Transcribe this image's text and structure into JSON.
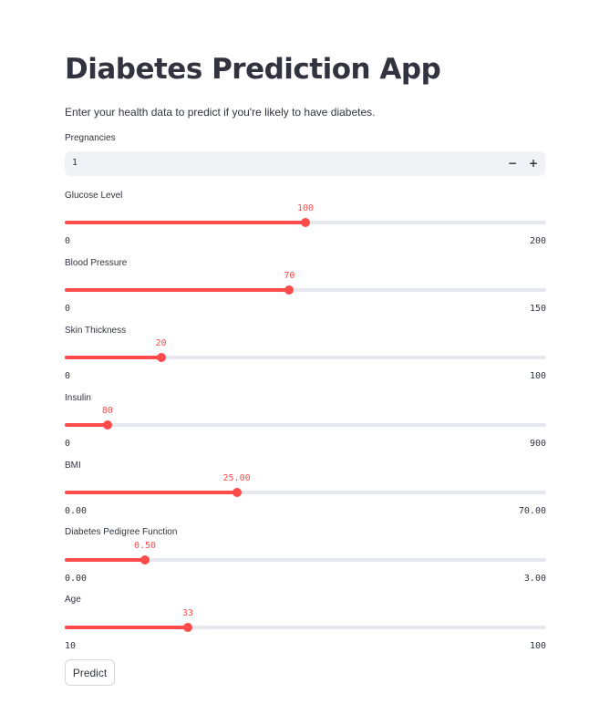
{
  "app": {
    "title": "Diabetes Prediction App",
    "subtitle": "Enter your health data to predict if you're likely to have diabetes."
  },
  "pregnancies": {
    "label": "Pregnancies",
    "value": "1",
    "minus": "−",
    "plus": "+"
  },
  "sliders": [
    {
      "label": "Glucose Level",
      "value": 100,
      "value_text": "100",
      "min": 0,
      "max": 200,
      "min_text": "0",
      "max_text": "200"
    },
    {
      "label": "Blood Pressure",
      "value": 70,
      "value_text": "70",
      "min": 0,
      "max": 150,
      "min_text": "0",
      "max_text": "150"
    },
    {
      "label": "Skin Thickness",
      "value": 20,
      "value_text": "20",
      "min": 0,
      "max": 100,
      "min_text": "0",
      "max_text": "100"
    },
    {
      "label": "Insulin",
      "value": 80,
      "value_text": "80",
      "min": 0,
      "max": 900,
      "min_text": "0",
      "max_text": "900"
    },
    {
      "label": "BMI",
      "value": 25.0,
      "value_text": "25.00",
      "min": 0,
      "max": 70,
      "min_text": "0.00",
      "max_text": "70.00"
    },
    {
      "label": "Diabetes Pedigree Function",
      "value": 0.5,
      "value_text": "0.50",
      "min": 0,
      "max": 3,
      "min_text": "0.00",
      "max_text": "3.00"
    },
    {
      "label": "Age",
      "value": 33,
      "value_text": "33",
      "min": 10,
      "max": 100,
      "min_text": "10",
      "max_text": "100"
    }
  ],
  "predict_label": "Predict",
  "colors": {
    "accent": "#ff4b4b",
    "track": "#e6e8ee",
    "text": "#31333f",
    "input_bg": "#f0f2f6"
  }
}
